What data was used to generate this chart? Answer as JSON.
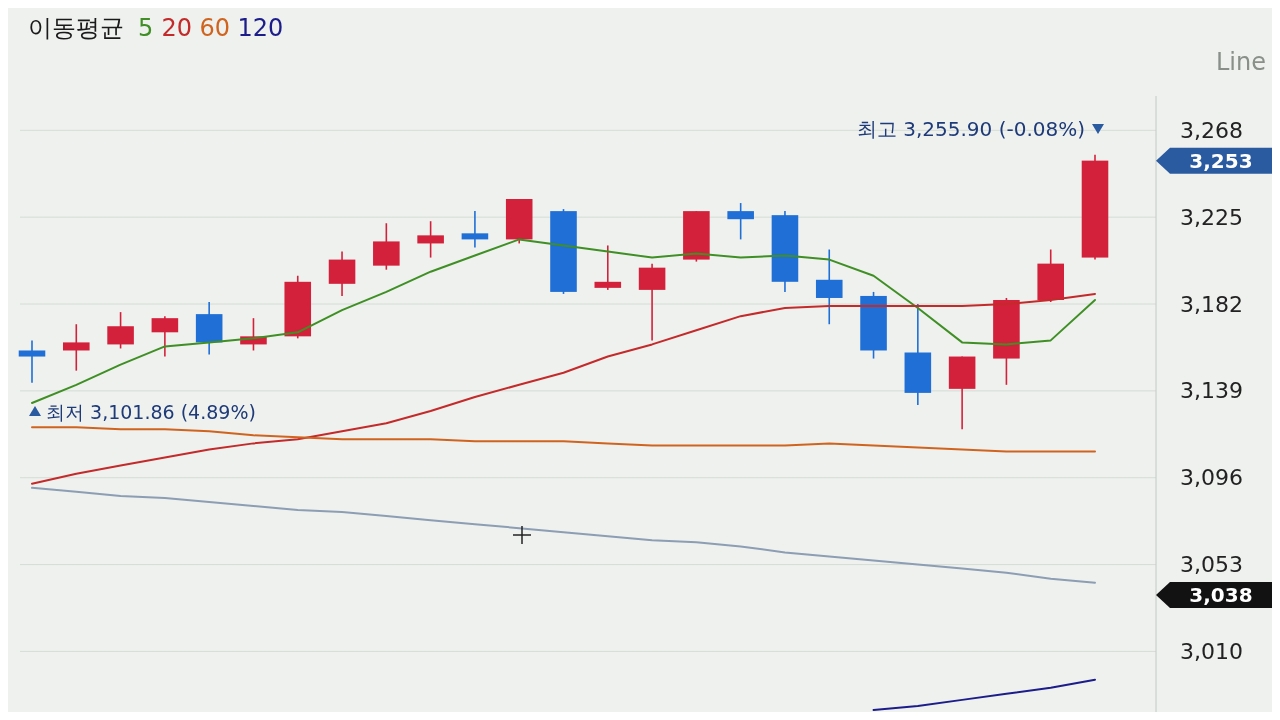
{
  "chart_data": {
    "type": "candlestick",
    "categories": [
      null,
      null,
      null,
      null,
      null,
      null,
      null,
      null,
      null,
      null,
      null,
      null,
      null,
      null,
      null,
      null,
      null,
      null,
      null,
      null,
      null,
      null,
      null,
      null,
      null
    ],
    "ohlc": [
      [
        3159,
        3164,
        3143,
        3156
      ],
      [
        3159,
        3172,
        3149,
        3163
      ],
      [
        3162,
        3178,
        3160,
        3171
      ],
      [
        3168,
        3176,
        3156,
        3175
      ],
      [
        3177,
        3183,
        3157,
        3163
      ],
      [
        3162,
        3175,
        3159,
        3166
      ],
      [
        3166,
        3196,
        3165,
        3193
      ],
      [
        3192,
        3208,
        3186,
        3204
      ],
      [
        3201,
        3222,
        3199,
        3213
      ],
      [
        3212,
        3223,
        3205,
        3216
      ],
      [
        3217,
        3228,
        3210,
        3214
      ],
      [
        3214,
        3234,
        3212,
        3234
      ],
      [
        3228,
        3229,
        3187,
        3188
      ],
      [
        3190,
        3211,
        3189,
        3193
      ],
      [
        3189,
        3202,
        3164,
        3200
      ],
      [
        3204,
        3228,
        3203,
        3228
      ],
      [
        3228,
        3232,
        3214,
        3224
      ],
      [
        3226,
        3228,
        3188,
        3193
      ],
      [
        3194,
        3209,
        3172,
        3185
      ],
      [
        3186,
        3188,
        3155,
        3159
      ],
      [
        3158,
        3182,
        3132,
        3138
      ],
      [
        3140,
        3156,
        3120,
        3156
      ],
      [
        3155,
        3185,
        3142,
        3184
      ],
      [
        3184,
        3209,
        3183,
        3202
      ],
      [
        3205,
        3255.9,
        3204,
        3253
      ]
    ],
    "colors": [
      "#1f6fd6",
      "#d4213b",
      "#d4213b",
      "#d4213b",
      "#1f6fd6",
      "#d4213b",
      "#d4213b",
      "#d4213b",
      "#d4213b",
      "#d4213b",
      "#1f6fd6",
      "#d4213b",
      "#1f6fd6",
      "#d4213b",
      "#d4213b",
      "#d4213b",
      "#1f6fd6",
      "#1f6fd6",
      "#1f6fd6",
      "#1f6fd6",
      "#1f6fd6",
      "#d4213b",
      "#d4213b",
      "#d4213b",
      "#d4213b"
    ],
    "series": [
      {
        "name": "5",
        "type": "line",
        "color": "#3f8f24",
        "values": [
          3133,
          3142,
          3152,
          3161,
          3163,
          3165,
          3168,
          3179,
          3188,
          3198,
          3206,
          3214,
          3211,
          3208,
          3205,
          3207,
          3205,
          3206,
          3204,
          3196,
          3180,
          3163,
          3162,
          3164,
          3184
        ]
      },
      {
        "name": "20",
        "type": "line",
        "color": "#c42a2a",
        "values": [
          3093,
          3098,
          3102,
          3106,
          3110,
          3113,
          3115,
          3119,
          3123,
          3129,
          3136,
          3142,
          3148,
          3156,
          3162,
          3169,
          3176,
          3180,
          3181,
          3181,
          3181,
          3181,
          3182,
          3184,
          3187
        ]
      },
      {
        "name": "60",
        "type": "line",
        "color": "#d0641e",
        "values": [
          3121,
          3121,
          3120,
          3120,
          3119,
          3117,
          3116,
          3115,
          3115,
          3115,
          3114,
          3114,
          3114,
          3113,
          3112,
          3112,
          3112,
          3112,
          3113,
          3112,
          3111,
          3110,
          3109,
          3109,
          3109
        ]
      },
      {
        "name": "120",
        "type": "line",
        "color": "#1c1c8a",
        "values": [
          null,
          null,
          null,
          null,
          null,
          null,
          null,
          null,
          null,
          null,
          null,
          null,
          null,
          null,
          null,
          null,
          null,
          null,
          null,
          2981,
          2983,
          2986,
          2989,
          2992,
          2996
        ]
      },
      {
        "type": "line",
        "color": "#8d9db3",
        "values": [
          3091,
          3089,
          3087,
          3086,
          3084,
          3082,
          3080,
          3079,
          3077,
          3075,
          3073,
          3071,
          3069,
          3067,
          3065,
          3064,
          3062,
          3059,
          3057,
          3055,
          3053,
          3051,
          3049,
          3046,
          3044
        ]
      }
    ],
    "ylim": [
      2980,
      3285
    ],
    "yticks": [
      {
        "value": 3010,
        "label": "3,010"
      },
      {
        "value": 3053,
        "label": "3,053"
      },
      {
        "value": 3096,
        "label": "3,096"
      },
      {
        "value": 3139,
        "label": "3,139"
      },
      {
        "value": 3182,
        "label": "3,182"
      },
      {
        "value": 3225,
        "label": "3,225"
      },
      {
        "value": 3268,
        "label": "3,268"
      }
    ],
    "grid": "y",
    "tick_labels": "y",
    "legend": "top left",
    "legend_title": "이동평균",
    "annotations": [
      "최고 3,255.90 (-0.08%)",
      "최저 3,101.86 (4.89%)",
      "Line",
      "3,253",
      "3,038"
    ]
  }
}
